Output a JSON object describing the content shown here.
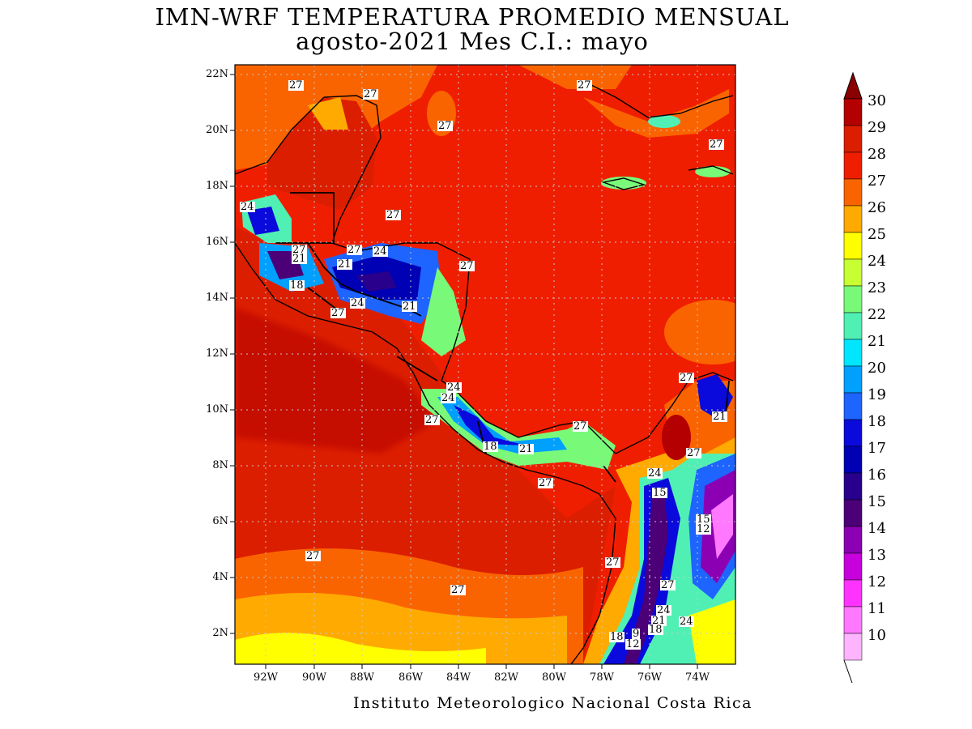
{
  "title_line1": "IMN-WRF  TEMPERATURA PROMEDIO MENSUAL",
  "title_line2": "agosto-2021 Mes C.I.: mayo",
  "credit": "Instituto Meteorologico Nacional Costa Rica",
  "lat_labels": [
    "22N",
    "20N",
    "18N",
    "16N",
    "14N",
    "12N",
    "10N",
    "8N",
    "6N",
    "4N",
    "2N"
  ],
  "lon_labels": [
    "92W",
    "90W",
    "88W",
    "86W",
    "84W",
    "82W",
    "80W",
    "78W",
    "76W",
    "74W"
  ],
  "colorbar": {
    "levels": [
      "30",
      "29",
      "28",
      "27",
      "26",
      "25",
      "24",
      "23",
      "22",
      "21",
      "20",
      "19",
      "18",
      "17",
      "16",
      "15",
      "14",
      "13",
      "12",
      "11",
      "10"
    ],
    "colors": [
      "#8b0000",
      "#b40000",
      "#dc1e00",
      "#f01e00",
      "#fa6400",
      "#ffaa00",
      "#ffff00",
      "#c8ff32",
      "#78fa78",
      "#50f0b4",
      "#00e6ff",
      "#00a0ff",
      "#1e64ff",
      "#0a0adc",
      "#0000b4",
      "#28008c",
      "#4b0078",
      "#8c00b4",
      "#c800dc",
      "#ff32ff",
      "#ff78ff",
      "#ffb4ff"
    ]
  },
  "contour_labels": [
    {
      "text": "27"
    },
    {
      "text": "27"
    },
    {
      "text": "27"
    },
    {
      "text": "27"
    },
    {
      "text": "27"
    },
    {
      "text": "24"
    },
    {
      "text": "27"
    },
    {
      "text": "27"
    },
    {
      "text": "27"
    },
    {
      "text": "24"
    },
    {
      "text": "21"
    },
    {
      "text": "21"
    },
    {
      "text": "27"
    },
    {
      "text": "18"
    },
    {
      "text": "27"
    },
    {
      "text": "24"
    },
    {
      "text": "21"
    },
    {
      "text": "27"
    },
    {
      "text": "24"
    },
    {
      "text": "24"
    },
    {
      "text": "27"
    },
    {
      "text": "18"
    },
    {
      "text": "21"
    },
    {
      "text": "27"
    },
    {
      "text": "21"
    },
    {
      "text": "27"
    },
    {
      "text": "24"
    },
    {
      "text": "15"
    },
    {
      "text": "27"
    },
    {
      "text": "15"
    },
    {
      "text": "12"
    },
    {
      "text": "27"
    },
    {
      "text": "27"
    },
    {
      "text": "27"
    },
    {
      "text": "24"
    },
    {
      "text": "21"
    },
    {
      "text": "24"
    },
    {
      "text": "18"
    },
    {
      "text": "18"
    },
    {
      "text": "9"
    },
    {
      "text": "12"
    }
  ]
}
